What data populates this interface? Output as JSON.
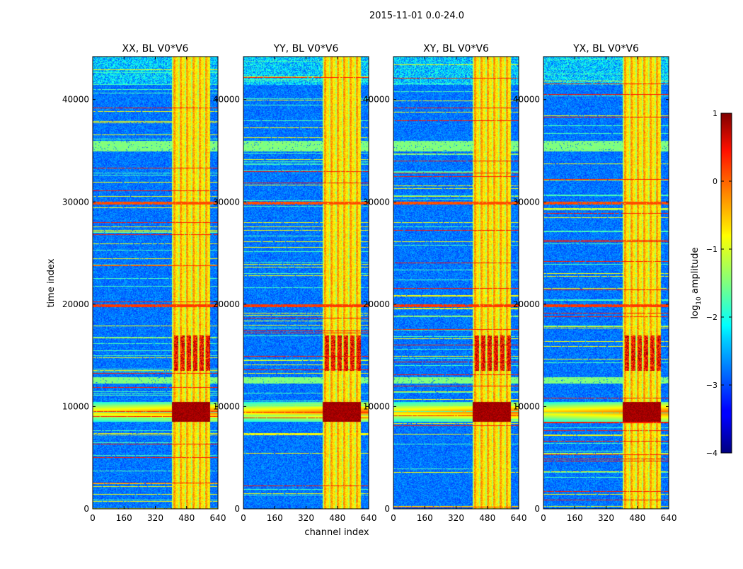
{
  "figure_title": "2015-11-01 0.0-24.0",
  "chart_data": {
    "type": "heatmap",
    "panels": [
      {
        "title": "XX, BL V0*V6",
        "pol": "XX"
      },
      {
        "title": "YY, BL V0*V6",
        "pol": "YY"
      },
      {
        "title": "XY, BL V0*V6",
        "pol": "XY"
      },
      {
        "title": "YX, BL V0*V6",
        "pol": "YX"
      }
    ],
    "xlabel": "channel index",
    "ylabel": "time index",
    "xlim": [
      0,
      640
    ],
    "ylim": [
      0,
      44200
    ],
    "xticks": [
      0,
      160,
      320,
      480,
      640
    ],
    "yticks": [
      0,
      10000,
      20000,
      30000,
      40000
    ],
    "colorbar": {
      "label": "log10 amplitude",
      "label_base": "log",
      "label_sub": "10",
      "label_rest": " amplitude",
      "range": [
        -4,
        1
      ],
      "ticks": [
        1,
        0,
        -1,
        -2,
        -3,
        -4
      ],
      "tick_labels": [
        "1",
        "0",
        "−1",
        "−2",
        "−3",
        "−4"
      ],
      "colormap": "jet"
    },
    "flagged_channel_band": [
      405,
      600
    ],
    "strong_signal_time_band": [
      8500,
      10500
    ]
  }
}
